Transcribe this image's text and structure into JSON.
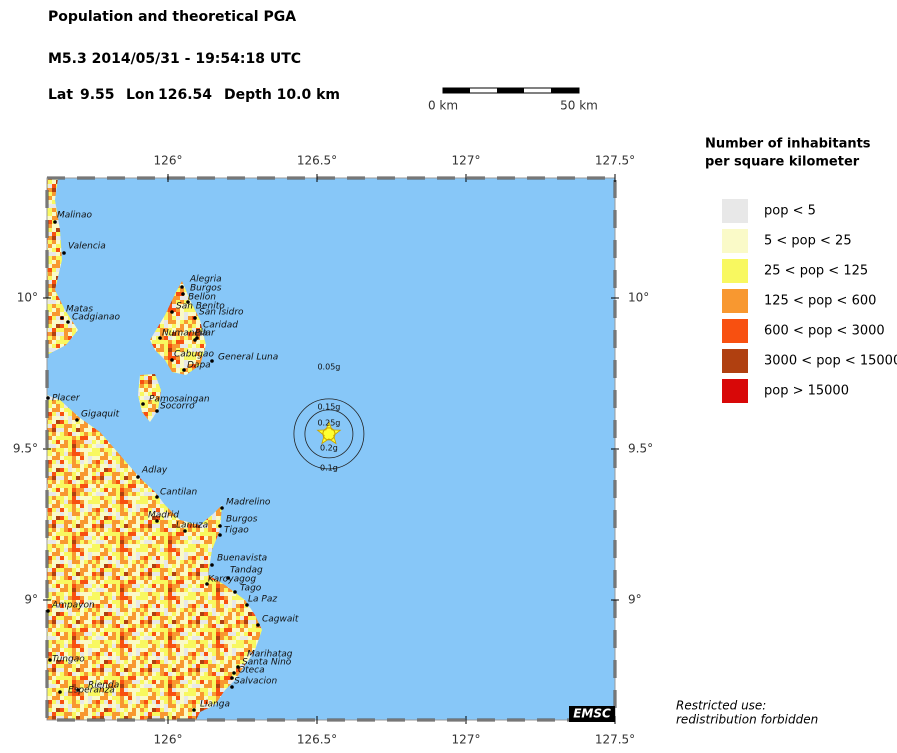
{
  "header": {
    "title": "Population and theoretical PGA",
    "event": "M5.3  2014/05/31 - 19:54:18 UTC",
    "lat_label": "Lat",
    "lat": 9.55,
    "lon_label": "Lon",
    "lon": 126.54,
    "depth": "Depth  10.0 km"
  },
  "scale": {
    "start": "0 km",
    "end": "50 km"
  },
  "map": {
    "lon_ticks": [
      {
        "value": 126,
        "label": "126°"
      },
      {
        "value": 126.5,
        "label": "126.5°"
      },
      {
        "value": 127,
        "label": "127°"
      },
      {
        "value": 127.5,
        "label": "127.5°"
      }
    ],
    "lat_ticks": [
      {
        "value": 10,
        "label": "10°"
      },
      {
        "value": 9.5,
        "label": "9.5°"
      },
      {
        "value": 9,
        "label": "9°"
      }
    ],
    "pga_labels": [
      "0.05g",
      "0.15g",
      "0.25g",
      "0.2g",
      "0.1g"
    ],
    "cities": [
      "Malinao",
      "Valencia",
      "Matas",
      "Cadgianao",
      "Alegria",
      "Burgos",
      "Bellon",
      "San Benito",
      "San Isidro",
      "Caridad",
      "Numancia",
      "Pilar",
      "Cabugao",
      "General Luna",
      "Dapa",
      "Pamosaingan",
      "Socorro",
      "Placer",
      "Gigaquit",
      "Adlay",
      "Cantilan",
      "Madrelino",
      "Madrid",
      "Lanuza",
      "Burgos",
      "Tigao",
      "Buenavista",
      "Tandag",
      "Karoyagog",
      "Tago",
      "La Paz",
      "Cagwait",
      "Ampayon",
      "Marihatag",
      "Santa Nino",
      "Oteca",
      "Salvacion",
      "Tungao",
      "Rienda",
      "Esperanza",
      "Lianga"
    ],
    "credit": "EMSC"
  },
  "legend": {
    "title": [
      "Number of inhabitants",
      "per square kilometer"
    ],
    "items": [
      {
        "label": "pop < 5",
        "color": "#e8e8e8"
      },
      {
        "label": "5 < pop < 25",
        "color": "#fafac8"
      },
      {
        "label": "25 < pop < 125",
        "color": "#f8f860"
      },
      {
        "label": "125 < pop < 600",
        "color": "#f89830"
      },
      {
        "label": "600 < pop < 3000",
        "color": "#f85010"
      },
      {
        "label": "3000 < pop < 15000",
        "color": "#b04010"
      },
      {
        "label": "pop > 15000",
        "color": "#d80808"
      }
    ]
  },
  "notice": [
    "Restricted use:",
    "redistribution forbidden"
  ]
}
